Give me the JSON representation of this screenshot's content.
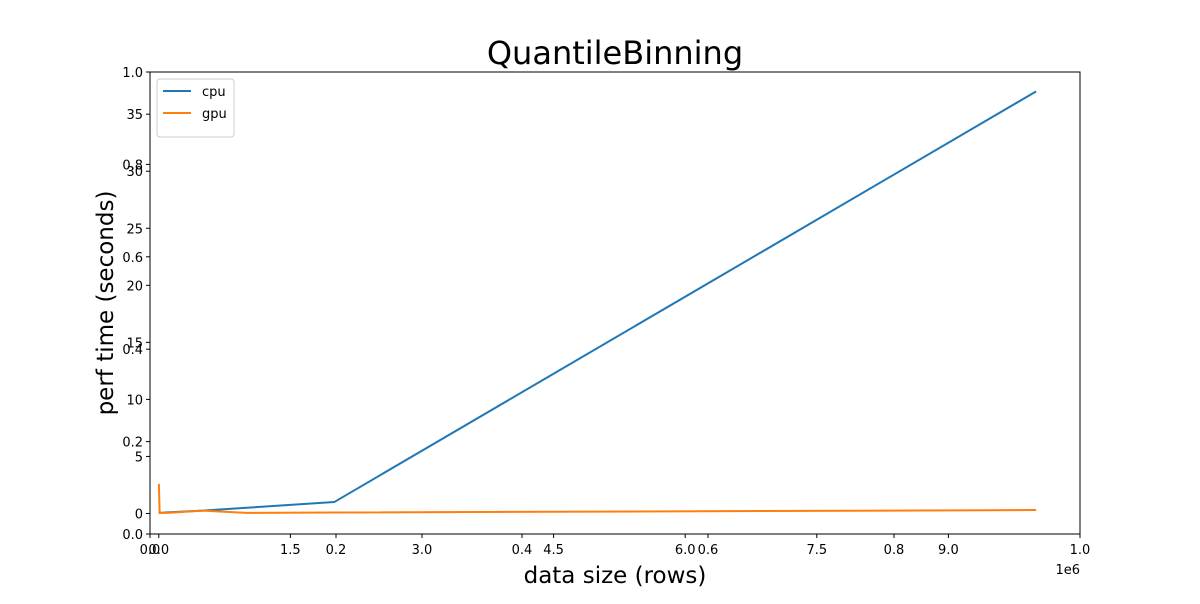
{
  "chart_data": {
    "type": "line",
    "title": "QuantileBinning",
    "xlabel": "data size (rows)",
    "ylabel": "perf time (seconds)",
    "x_offset_label": "1e6",
    "xlim": [
      -100000,
      10500000
    ],
    "ylim": [
      -1.8,
      38.7
    ],
    "frame_ticks_x": [
      "0.0",
      "0.2",
      "0.4",
      "0.6",
      "0.8",
      "1.0"
    ],
    "frame_ticks_y": [
      "0.0",
      "0.2",
      "0.4",
      "0.6",
      "0.8",
      "1.0"
    ],
    "x_ticks": [
      {
        "value": 0,
        "label": "0.0"
      },
      {
        "value": 1500000,
        "label": "1.5"
      },
      {
        "value": 3000000,
        "label": "3.0"
      },
      {
        "value": 4500000,
        "label": "4.5"
      },
      {
        "value": 6000000,
        "label": "6.0"
      },
      {
        "value": 7500000,
        "label": "7.5"
      },
      {
        "value": 9000000,
        "label": "9.0"
      }
    ],
    "y_ticks": [
      {
        "value": 0,
        "label": "0"
      },
      {
        "value": 5,
        "label": "5"
      },
      {
        "value": 10,
        "label": "10"
      },
      {
        "value": 15,
        "label": "15"
      },
      {
        "value": 20,
        "label": "20"
      },
      {
        "value": 25,
        "label": "25"
      },
      {
        "value": 30,
        "label": "30"
      },
      {
        "value": 35,
        "label": "35"
      }
    ],
    "legend_position": "top-left",
    "grid": false,
    "series": [
      {
        "name": "cpu",
        "color": "#1f77b4",
        "points": [
          [
            1000,
            0.02
          ],
          [
            10000,
            0.05
          ],
          [
            100000,
            0.1
          ],
          [
            500000,
            0.25
          ],
          [
            1000000,
            0.5
          ],
          [
            2000000,
            1.0
          ],
          [
            10000000,
            37.0
          ]
        ]
      },
      {
        "name": "gpu",
        "color": "#ff7f0e",
        "points": [
          [
            1000,
            2.6
          ],
          [
            10000,
            0.05
          ],
          [
            100000,
            0.05
          ],
          [
            500000,
            0.25
          ],
          [
            1000000,
            0.05
          ],
          [
            2000000,
            0.08
          ],
          [
            10000000,
            0.3
          ]
        ]
      }
    ]
  }
}
